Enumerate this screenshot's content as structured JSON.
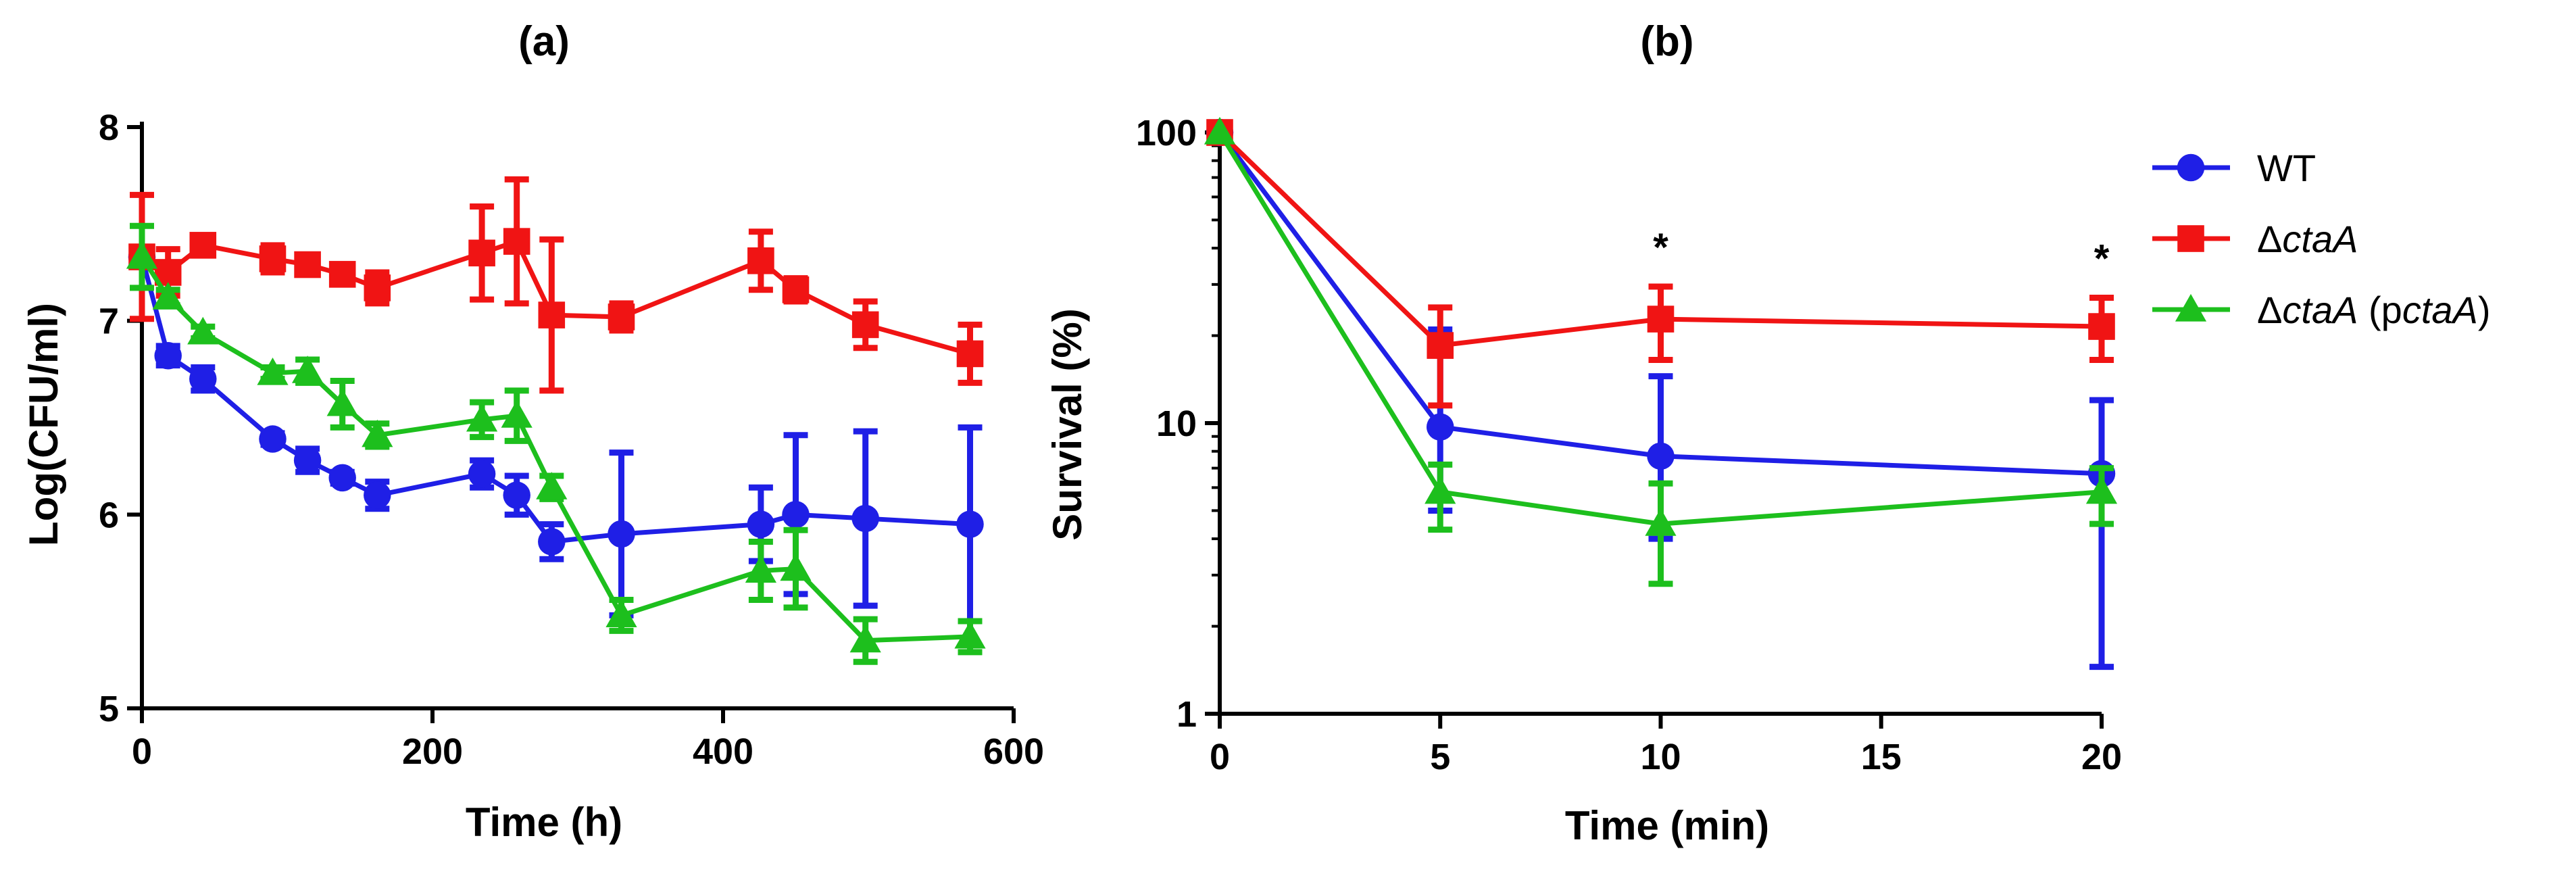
{
  "chart_data": [
    {
      "type": "line",
      "title": "(a)",
      "xlabel": "Time (h)",
      "ylabel": "Log(CFU/ml)",
      "xlim": [
        0,
        600
      ],
      "ylim": [
        5,
        8
      ],
      "xticks": [
        0,
        200,
        400,
        600
      ],
      "yticks": [
        5,
        6,
        7,
        8
      ],
      "series": [
        {
          "name": "WT",
          "color": "#1f1fe6",
          "marker": "circle",
          "x": [
            0,
            18,
            42,
            90,
            114,
            138,
            162,
            234,
            258,
            282,
            330,
            426,
            450,
            498,
            570
          ],
          "y": [
            7.33,
            6.82,
            6.7,
            6.39,
            6.28,
            6.19,
            6.1,
            6.21,
            6.1,
            5.86,
            5.9,
            5.95,
            6.0,
            5.98,
            5.95
          ],
          "err": [
            0.05,
            0.05,
            0.06,
            0.03,
            0.06,
            0.03,
            0.07,
            0.07,
            0.1,
            0.09,
            0.42,
            0.19,
            0.41,
            0.45,
            0.5
          ]
        },
        {
          "name": "ΔctaA",
          "color": "#f01414",
          "marker": "square",
          "x": [
            0,
            18,
            42,
            90,
            114,
            138,
            162,
            234,
            258,
            282,
            330,
            426,
            450,
            498,
            570
          ],
          "y": [
            7.33,
            7.25,
            7.39,
            7.32,
            7.29,
            7.24,
            7.17,
            7.35,
            7.41,
            7.03,
            7.02,
            7.31,
            7.16,
            6.98,
            6.83
          ],
          "err": [
            0.32,
            0.12,
            0.03,
            0.07,
            0.04,
            0.04,
            0.08,
            0.24,
            0.32,
            0.39,
            0.07,
            0.15,
            0.06,
            0.12,
            0.15
          ]
        },
        {
          "name": "ΔctaA (pctaA)",
          "color": "#1dbf1d",
          "marker": "triangle",
          "x": [
            0,
            18,
            42,
            90,
            114,
            138,
            162,
            234,
            258,
            282,
            330,
            426,
            450,
            498,
            570
          ],
          "y": [
            7.33,
            7.12,
            6.94,
            6.73,
            6.74,
            6.57,
            6.41,
            6.49,
            6.51,
            6.14,
            5.48,
            5.71,
            5.72,
            5.35,
            5.37
          ],
          "err": [
            0.16,
            0.04,
            0.03,
            0.03,
            0.06,
            0.12,
            0.06,
            0.09,
            0.13,
            0.06,
            0.08,
            0.15,
            0.2,
            0.11,
            0.08
          ]
        }
      ]
    },
    {
      "type": "line",
      "title": "(b)",
      "xlabel": "Time (min)",
      "ylabel": "Survival (%)",
      "xlim": [
        0,
        20
      ],
      "ylim": [
        1,
        100
      ],
      "yscale": "log",
      "xticks": [
        0,
        5,
        10,
        15,
        20
      ],
      "yticks": [
        1,
        10,
        100
      ],
      "ytick_labels": [
        "1",
        "10",
        "100"
      ],
      "series": [
        {
          "name": "WT",
          "color": "#1f1fe6",
          "marker": "circle",
          "x": [
            0,
            5,
            10,
            20
          ],
          "y": [
            100,
            9.7,
            7.7,
            6.7
          ],
          "err_low": [
            100,
            5.0,
            4.0,
            1.45
          ],
          "err_high": [
            100,
            21.0,
            14.5,
            12.0
          ]
        },
        {
          "name": "ΔctaA",
          "color": "#f01414",
          "marker": "square",
          "x": [
            0,
            5,
            10,
            20
          ],
          "y": [
            100,
            18.5,
            22.8,
            21.5
          ],
          "err_low": [
            96,
            11.5,
            16.5,
            16.5
          ],
          "err_high": [
            104,
            25.0,
            29.5,
            27.0
          ]
        },
        {
          "name": "ΔctaA (pctaA)",
          "color": "#1dbf1d",
          "marker": "triangle",
          "x": [
            0,
            5,
            10,
            20
          ],
          "y": [
            100,
            5.8,
            4.5,
            5.8
          ],
          "err_low": [
            100,
            4.3,
            2.8,
            4.5
          ],
          "err_high": [
            100,
            7.2,
            6.2,
            7.0
          ]
        }
      ],
      "annotations": [
        {
          "x": 10,
          "text": "*"
        },
        {
          "x": 20,
          "text": "*"
        }
      ]
    }
  ],
  "legend": {
    "placement": "right",
    "items": [
      {
        "prefix": "WT",
        "ital": "",
        "suffix": "",
        "color": "#1f1fe6",
        "marker": "circle"
      },
      {
        "prefix": "Δ",
        "ital": "ctaA",
        "suffix": "",
        "color": "#f01414",
        "marker": "square"
      },
      {
        "prefix": "Δ",
        "ital": "ctaA",
        "suffix": " (p",
        "ital2": "ctaA",
        "suffix2": ")",
        "color": "#1dbf1d",
        "marker": "triangle"
      }
    ]
  }
}
